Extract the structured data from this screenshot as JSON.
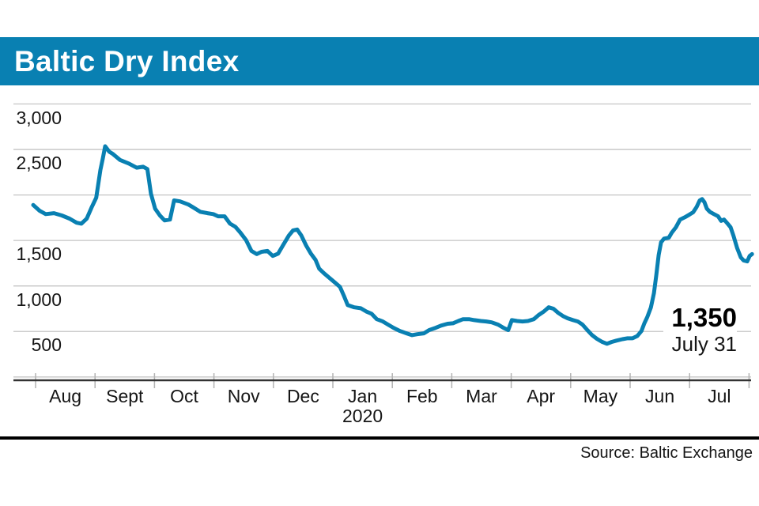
{
  "header": {
    "title": "Baltic Dry Index"
  },
  "footer": {
    "source": "Source: Baltic Exchange"
  },
  "colors": {
    "accent": "#0980b2",
    "line": "#0980b2",
    "grid": "#c4c4c4",
    "tick": "#b3b3b3",
    "axis": "#333333",
    "text": "#151515"
  },
  "chart_data": {
    "type": "line",
    "title": "Baltic Dry Index",
    "source": "Source: Baltic Exchange",
    "annotation": {
      "value": "1,350",
      "date": "July 31"
    },
    "x_months": [
      {
        "label": "Aug"
      },
      {
        "label": "Sept"
      },
      {
        "label": "Oct"
      },
      {
        "label": "Nov"
      },
      {
        "label": "Dec"
      },
      {
        "label": "Jan",
        "sub": "2020"
      },
      {
        "label": "Feb"
      },
      {
        "label": "Mar"
      },
      {
        "label": "Apr"
      },
      {
        "label": "May"
      },
      {
        "label": "Jun"
      },
      {
        "label": "Jul"
      }
    ],
    "ylim": [
      0,
      3000
    ],
    "y_gridlines": [
      3000,
      2500,
      2000,
      1500,
      1000,
      500,
      0
    ],
    "y_labels": [
      {
        "value": 3000,
        "label": "3,000"
      },
      {
        "value": 2500,
        "label": "2,500"
      },
      {
        "value": 1500,
        "label": "1,500"
      },
      {
        "value": 1000,
        "label": "1,000"
      },
      {
        "value": 500,
        "label": "500"
      }
    ],
    "legend": "none",
    "grid": "horizontal",
    "series": [
      {
        "name": "Baltic Dry Index",
        "color": "#0980b2",
        "x_unit": "months since Aug 1 2019",
        "points": [
          [
            -0.04,
            1890
          ],
          [
            0.07,
            1825
          ],
          [
            0.17,
            1790
          ],
          [
            0.31,
            1800
          ],
          [
            0.44,
            1775
          ],
          [
            0.57,
            1740
          ],
          [
            0.69,
            1695
          ],
          [
            0.77,
            1685
          ],
          [
            0.86,
            1740
          ],
          [
            0.94,
            1860
          ],
          [
            1.02,
            1970
          ],
          [
            1.09,
            2275
          ],
          [
            1.13,
            2400
          ],
          [
            1.17,
            2535
          ],
          [
            1.24,
            2475
          ],
          [
            1.3,
            2450
          ],
          [
            1.42,
            2385
          ],
          [
            1.57,
            2345
          ],
          [
            1.7,
            2300
          ],
          [
            1.81,
            2310
          ],
          [
            1.88,
            2285
          ],
          [
            1.94,
            2015
          ],
          [
            2.01,
            1850
          ],
          [
            2.09,
            1775
          ],
          [
            2.17,
            1720
          ],
          [
            2.26,
            1730
          ],
          [
            2.33,
            1940
          ],
          [
            2.43,
            1930
          ],
          [
            2.57,
            1895
          ],
          [
            2.66,
            1860
          ],
          [
            2.77,
            1815
          ],
          [
            2.89,
            1800
          ],
          [
            2.99,
            1790
          ],
          [
            3.07,
            1765
          ],
          [
            3.18,
            1765
          ],
          [
            3.27,
            1685
          ],
          [
            3.36,
            1650
          ],
          [
            3.44,
            1590
          ],
          [
            3.54,
            1505
          ],
          [
            3.63,
            1385
          ],
          [
            3.72,
            1350
          ],
          [
            3.8,
            1375
          ],
          [
            3.9,
            1385
          ],
          [
            3.99,
            1330
          ],
          [
            4.08,
            1355
          ],
          [
            4.16,
            1445
          ],
          [
            4.26,
            1555
          ],
          [
            4.33,
            1610
          ],
          [
            4.4,
            1620
          ],
          [
            4.47,
            1555
          ],
          [
            4.55,
            1445
          ],
          [
            4.63,
            1355
          ],
          [
            4.71,
            1285
          ],
          [
            4.77,
            1190
          ],
          [
            4.85,
            1140
          ],
          [
            4.95,
            1085
          ],
          [
            5.04,
            1035
          ],
          [
            5.12,
            990
          ],
          [
            5.19,
            885
          ],
          [
            5.25,
            790
          ],
          [
            5.36,
            765
          ],
          [
            5.47,
            755
          ],
          [
            5.56,
            720
          ],
          [
            5.65,
            695
          ],
          [
            5.74,
            635
          ],
          [
            5.84,
            610
          ],
          [
            5.93,
            575
          ],
          [
            6.02,
            540
          ],
          [
            6.13,
            505
          ],
          [
            6.24,
            480
          ],
          [
            6.33,
            460
          ],
          [
            6.42,
            470
          ],
          [
            6.53,
            480
          ],
          [
            6.62,
            515
          ],
          [
            6.73,
            540
          ],
          [
            6.82,
            565
          ],
          [
            6.93,
            585
          ],
          [
            7.02,
            590
          ],
          [
            7.11,
            615
          ],
          [
            7.19,
            635
          ],
          [
            7.29,
            635
          ],
          [
            7.38,
            625
          ],
          [
            7.49,
            615
          ],
          [
            7.58,
            610
          ],
          [
            7.67,
            600
          ],
          [
            7.78,
            575
          ],
          [
            7.87,
            540
          ],
          [
            7.95,
            515
          ],
          [
            8.01,
            625
          ],
          [
            8.1,
            615
          ],
          [
            8.19,
            610
          ],
          [
            8.28,
            615
          ],
          [
            8.38,
            635
          ],
          [
            8.46,
            680
          ],
          [
            8.55,
            720
          ],
          [
            8.63,
            765
          ],
          [
            8.71,
            750
          ],
          [
            8.79,
            705
          ],
          [
            8.87,
            670
          ],
          [
            8.95,
            645
          ],
          [
            9.04,
            625
          ],
          [
            9.12,
            610
          ],
          [
            9.2,
            575
          ],
          [
            9.28,
            515
          ],
          [
            9.36,
            460
          ],
          [
            9.44,
            420
          ],
          [
            9.53,
            385
          ],
          [
            9.61,
            365
          ],
          [
            9.69,
            385
          ],
          [
            9.77,
            400
          ],
          [
            9.87,
            415
          ],
          [
            9.95,
            425
          ],
          [
            10.04,
            425
          ],
          [
            10.12,
            450
          ],
          [
            10.19,
            505
          ],
          [
            10.24,
            590
          ],
          [
            10.29,
            660
          ],
          [
            10.35,
            765
          ],
          [
            10.4,
            920
          ],
          [
            10.44,
            1120
          ],
          [
            10.48,
            1340
          ],
          [
            10.52,
            1480
          ],
          [
            10.57,
            1520
          ],
          [
            10.65,
            1530
          ],
          [
            10.7,
            1585
          ],
          [
            10.77,
            1645
          ],
          [
            10.84,
            1730
          ],
          [
            10.92,
            1755
          ],
          [
            11.0,
            1785
          ],
          [
            11.06,
            1810
          ],
          [
            11.12,
            1870
          ],
          [
            11.17,
            1940
          ],
          [
            11.21,
            1955
          ],
          [
            11.25,
            1920
          ],
          [
            11.29,
            1850
          ],
          [
            11.34,
            1815
          ],
          [
            11.41,
            1790
          ],
          [
            11.48,
            1765
          ],
          [
            11.53,
            1715
          ],
          [
            11.58,
            1730
          ],
          [
            11.64,
            1685
          ],
          [
            11.69,
            1645
          ],
          [
            11.74,
            1550
          ],
          [
            11.8,
            1415
          ],
          [
            11.86,
            1315
          ],
          [
            11.91,
            1280
          ],
          [
            11.97,
            1270
          ],
          [
            12.01,
            1330
          ],
          [
            12.05,
            1350
          ]
        ]
      }
    ]
  }
}
